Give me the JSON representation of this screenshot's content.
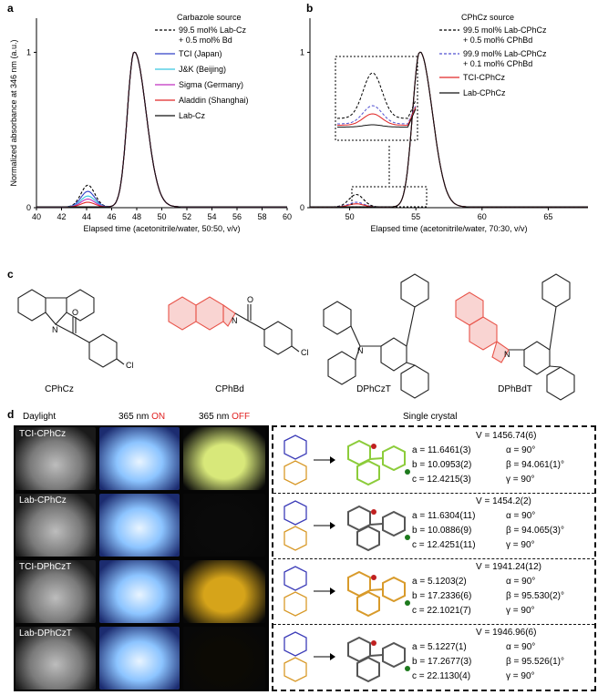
{
  "panel_letters": {
    "a": "a",
    "b": "b",
    "c": "c",
    "d": "d"
  },
  "chart_data": [
    {
      "type": "line",
      "xlabel": "Elapsed time (acetonitrile/water, 50:50, v/v)",
      "ylabel": "Normalized absorbance at 346 nm (a.u.)",
      "xlim": [
        40,
        60
      ],
      "ylim": [
        0,
        1
      ],
      "x_ticks": [
        "40",
        "42",
        "44",
        "46",
        "48",
        "50",
        "52",
        "54",
        "56",
        "58",
        "60"
      ],
      "y_ticks": [
        "0",
        "1"
      ],
      "legend_title": "Carbazole source",
      "legend_position": "top-right",
      "series": [
        {
          "name": "99.5 mol% Lab-Cz + 0.5 mol% Bd",
          "color": "#000000",
          "dashed": true,
          "impurity_peak": 0.14
        },
        {
          "name": "TCI (Japan)",
          "color": "#3040c8",
          "dashed": false,
          "impurity_peak": 0.1
        },
        {
          "name": "J&K (Beijing)",
          "color": "#39c7e0",
          "dashed": false,
          "impurity_peak": 0.07
        },
        {
          "name": "Sigma (Germany)",
          "color": "#c030c0",
          "dashed": false,
          "impurity_peak": 0.05
        },
        {
          "name": "Aladdin (Shanghai)",
          "color": "#e02828",
          "dashed": false,
          "impurity_peak": 0.03
        },
        {
          "name": "Lab-Cz",
          "color": "#111111",
          "dashed": false,
          "impurity_peak": 0.0
        }
      ],
      "main_peak": {
        "x": 47.8,
        "y": 1.0
      }
    },
    {
      "type": "line",
      "xlabel": "Elapsed time (acetonitrile/water, 70:30, v/v)",
      "ylabel": "Normalized absorbance at 354 nm (a.u.)",
      "xlim": [
        47,
        68
      ],
      "ylim": [
        0,
        1
      ],
      "x_ticks": [
        "50",
        "55",
        "60",
        "65"
      ],
      "y_ticks": [
        "0",
        "1"
      ],
      "legend_title": "CPhCz source",
      "legend_position": "top-right",
      "series": [
        {
          "name": "99.5 mol% Lab-CPhCz + 0.5 mol% CPhBd",
          "color": "#000000",
          "dashed": true,
          "impurity_peak": 0.08
        },
        {
          "name": "99.9 mol% Lab-CPhCz + 0.1 mol% CPhBd",
          "color": "#5050d0",
          "dashed": true,
          "impurity_peak": 0.03
        },
        {
          "name": "TCI-CPhCz",
          "color": "#e02828",
          "dashed": false,
          "impurity_peak": 0.02
        },
        {
          "name": "Lab-CPhCz",
          "color": "#111111",
          "dashed": false,
          "impurity_peak": 0.0
        }
      ],
      "main_peak": {
        "x": 55.3,
        "y": 1.0
      }
    }
  ],
  "structures": {
    "c1": "CPhCz",
    "c2": "CPhBd",
    "c3": "DPhCzT",
    "c4": "DPhBdT",
    "cl": "Cl",
    "o": "O",
    "n": "N",
    "highlight_color": "#e8544a"
  },
  "photos_header": {
    "daylight": "Daylight",
    "uv_on_prefix": "365 nm",
    "uv_on_suffix": "ON",
    "uv_off_prefix": "365 nm",
    "uv_off_suffix": "OFF",
    "crystal": "Single crystal",
    "accent": "#e02020"
  },
  "rows": [
    {
      "label": "TCI-CPhCz",
      "uv_off_color": "#d8e87a",
      "V": "V = 1456.74(6)",
      "a": "a = 11.6461(3)",
      "b": "b = 10.0953(2)",
      "c": "c = 12.4215(3)",
      "alpha": "α = 90°",
      "beta": "β = 94.061(1)°",
      "gamma": "γ = 90°",
      "mol_color": "#8ccc3a"
    },
    {
      "label": "Lab-CPhCz",
      "uv_off_color": "#0a0a0a",
      "V": "V = 1454.2(2)",
      "a": "a = 11.6304(11)",
      "b": "b = 10.0886(9)",
      "c": "c = 12.4251(11)",
      "alpha": "α = 90°",
      "beta": "β = 94.065(3)°",
      "gamma": "γ = 90°",
      "mol_color": "#555555"
    },
    {
      "label": "TCI-DPhCzT",
      "uv_off_color": "#d6a41a",
      "V": "V = 1941.24(12)",
      "a": "a = 5.1203(2)",
      "b": "b = 17.2336(6)",
      "c": "c = 22.1021(7)",
      "alpha": "α = 90°",
      "beta": "β = 95.530(2)°",
      "gamma": "γ = 90°",
      "mol_color": "#d89a2a"
    },
    {
      "label": "Lab-DPhCzT",
      "uv_off_color": "#0c0a04",
      "V": "V = 1946.96(6)",
      "a": "a = 5.1227(1)",
      "b": "b = 17.2677(3)",
      "c": "c = 22.1130(4)",
      "alpha": "α = 90°",
      "beta": "β = 95.526(1)°",
      "gamma": "γ = 90°",
      "mol_color": "#555555"
    }
  ]
}
